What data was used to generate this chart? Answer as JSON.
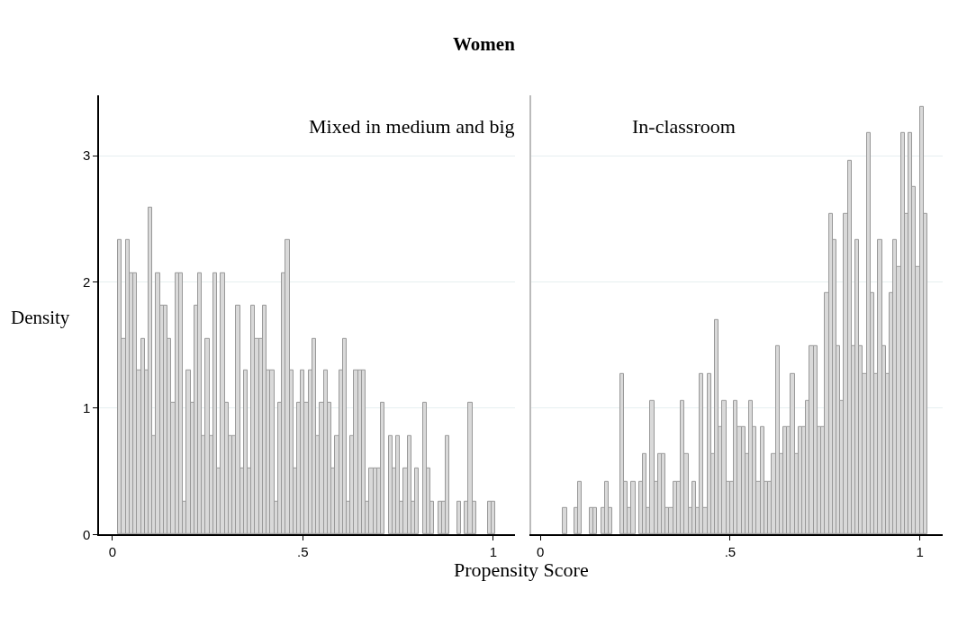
{
  "chart_data": [
    {
      "type": "histogram",
      "title": "Women",
      "subtitle": "Mixed in medium and big",
      "ylabel": "Density",
      "xlabel": "Propensity Score",
      "color": "#d9d9d9",
      "grid": "y",
      "xlim": [
        -0.035,
        1.057
      ],
      "ylim": [
        0,
        3.48
      ],
      "xticks": [
        0,
        {
          "value": 0.5,
          "label": ".5"
        },
        1
      ],
      "yticks": [
        0,
        1,
        2,
        3
      ],
      "bins": [
        0.015,
        0.025,
        0.035,
        0.045,
        0.055,
        0.065,
        0.075,
        0.085,
        0.095,
        0.105,
        0.115,
        0.125,
        0.135,
        0.145,
        0.155,
        0.165,
        0.175,
        0.185,
        0.195,
        0.205,
        0.215,
        0.225,
        0.235,
        0.245,
        0.255,
        0.265,
        0.275,
        0.285,
        0.295,
        0.305,
        0.315,
        0.325,
        0.335,
        0.345,
        0.355,
        0.365,
        0.375,
        0.385,
        0.395,
        0.405,
        0.415,
        0.425,
        0.435,
        0.445,
        0.455,
        0.465,
        0.475,
        0.485,
        0.495,
        0.505,
        0.515,
        0.525,
        0.535,
        0.545,
        0.555,
        0.565,
        0.575,
        0.585,
        0.595,
        0.605,
        0.615,
        0.625,
        0.635,
        0.645,
        0.655,
        0.665,
        0.675,
        0.685,
        0.695,
        0.705,
        0.715,
        0.725,
        0.735,
        0.745,
        0.755,
        0.765,
        0.775,
        0.785,
        0.795,
        0.805,
        0.815,
        0.825,
        0.835,
        0.845,
        0.855,
        0.865,
        0.875,
        0.885,
        0.895,
        0.905,
        0.915,
        0.925,
        0.935,
        0.945,
        0.955,
        0.965,
        0.975,
        0.985,
        0.995,
        1.005
      ],
      "values": [
        2.33,
        1.55,
        2.33,
        2.07,
        2.07,
        1.3,
        1.55,
        1.3,
        2.59,
        0.78,
        2.07,
        1.81,
        1.81,
        1.55,
        1.04,
        2.07,
        2.07,
        0.26,
        1.3,
        1.04,
        1.81,
        2.07,
        0.78,
        1.55,
        0.78,
        2.07,
        0.52,
        2.07,
        1.04,
        0.78,
        0.78,
        1.81,
        0.52,
        1.3,
        0.52,
        1.81,
        1.55,
        1.55,
        1.81,
        1.3,
        1.3,
        0.26,
        1.04,
        2.07,
        2.33,
        1.3,
        0.52,
        1.04,
        1.3,
        1.04,
        1.3,
        1.55,
        0.78,
        1.04,
        1.3,
        1.04,
        0.52,
        0.78,
        1.3,
        1.55,
        0.26,
        0.78,
        1.3,
        1.3,
        1.3,
        0.26,
        0.52,
        0.52,
        0.52,
        1.04,
        0,
        0.78,
        0.52,
        0.78,
        0.26,
        0.52,
        0.78,
        0.26,
        0.52,
        0,
        1.04,
        0.52,
        0.26,
        0,
        0.26,
        0.26,
        0.78,
        0,
        0,
        0.26,
        0,
        0.26,
        1.04,
        0.26,
        0,
        0,
        0,
        0.26,
        0.26
      ]
    },
    {
      "type": "histogram",
      "subtitle": "In-classroom",
      "color": "#d9d9d9",
      "grid": "y",
      "tick_labels": "x",
      "xlim": [
        -0.024,
        1.06
      ],
      "ylim": [
        0,
        3.48
      ],
      "xticks": [
        0,
        {
          "value": 0.5,
          "label": ".5"
        },
        1
      ],
      "yticks": [
        0,
        1,
        2,
        3
      ],
      "bins": [
        0.06,
        0.07,
        0.08,
        0.09,
        0.1,
        0.11,
        0.12,
        0.13,
        0.14,
        0.15,
        0.16,
        0.17,
        0.18,
        0.19,
        0.2,
        0.21,
        0.22,
        0.23,
        0.24,
        0.25,
        0.26,
        0.27,
        0.28,
        0.29,
        0.3,
        0.31,
        0.32,
        0.33,
        0.34,
        0.35,
        0.36,
        0.37,
        0.38,
        0.39,
        0.4,
        0.41,
        0.42,
        0.43,
        0.44,
        0.45,
        0.46,
        0.47,
        0.48,
        0.49,
        0.5,
        0.51,
        0.52,
        0.53,
        0.54,
        0.55,
        0.56,
        0.57,
        0.58,
        0.59,
        0.6,
        0.61,
        0.62,
        0.63,
        0.64,
        0.65,
        0.66,
        0.67,
        0.68,
        0.69,
        0.7,
        0.71,
        0.72,
        0.73,
        0.74,
        0.75,
        0.76,
        0.77,
        0.78,
        0.79,
        0.8,
        0.81,
        0.82,
        0.83,
        0.84,
        0.85,
        0.86,
        0.87,
        0.88,
        0.89,
        0.9,
        0.91,
        0.92,
        0.93,
        0.94,
        0.95,
        0.96,
        0.97,
        0.98,
        0.99,
        1.0,
        1.01,
        1.02
      ],
      "values": [
        0.21,
        0,
        0,
        0.21,
        0.42,
        0,
        0,
        0.21,
        0.21,
        0,
        0.21,
        0.42,
        0.21,
        0,
        0,
        1.27,
        0.42,
        0.21,
        0.42,
        0,
        0.42,
        0.64,
        0.21,
        1.06,
        0.42,
        0.64,
        0.64,
        0.21,
        0.21,
        0.42,
        0.42,
        1.06,
        0.64,
        0.21,
        0.42,
        0.21,
        1.27,
        0.21,
        1.27,
        0.64,
        1.7,
        0.85,
        1.06,
        0.42,
        0.42,
        1.06,
        0.85,
        0.85,
        0.64,
        1.06,
        0.85,
        0.42,
        0.85,
        0.42,
        0.42,
        0.64,
        1.49,
        0.64,
        0.85,
        0.85,
        1.27,
        0.64,
        0.85,
        0.85,
        1.06,
        1.49,
        1.49,
        0.85,
        0.85,
        1.91,
        2.54,
        2.33,
        1.49,
        1.06,
        2.54,
        2.96,
        1.49,
        2.33,
        1.49,
        1.27,
        3.18,
        1.91,
        1.27,
        2.33,
        1.49,
        1.27,
        1.91,
        2.33,
        2.12,
        3.18,
        2.54,
        3.18,
        2.75,
        2.12,
        3.39,
        2.54
      ]
    }
  ]
}
